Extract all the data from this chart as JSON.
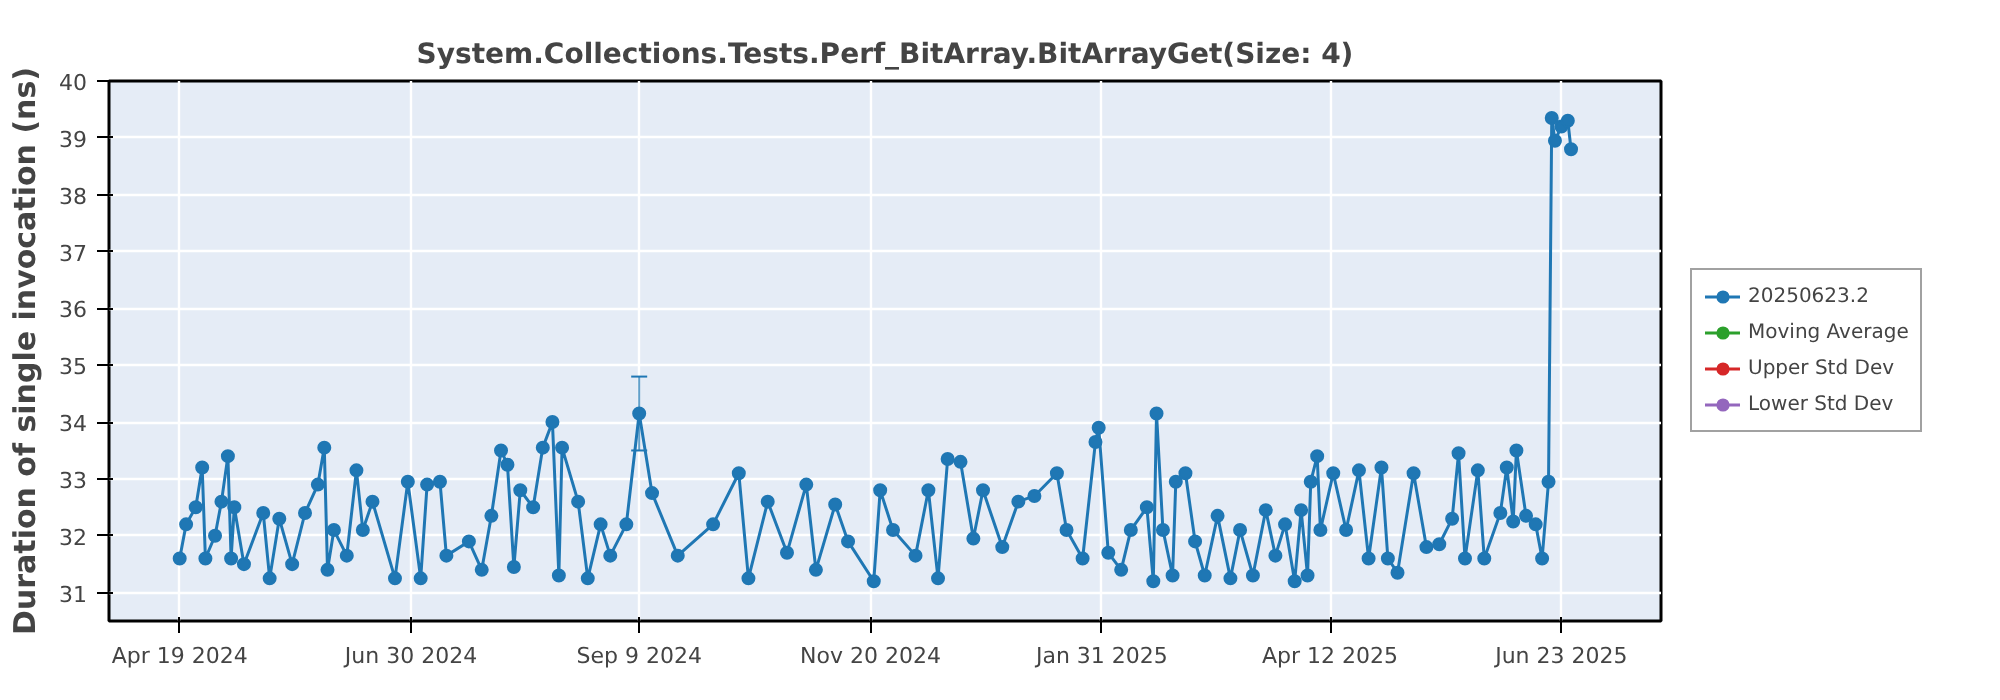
{
  "chart_data": {
    "type": "line",
    "title": "System.Collections.Tests.Perf_BitArray.BitArrayGet(Size: 4)",
    "ylabel": "Duration of single invocation (ns)",
    "xlim": [
      "2024-03-28",
      "2025-07-24"
    ],
    "ylim": [
      30.5,
      40
    ],
    "xticks": [
      {
        "value": "2024-04-19",
        "label": "Apr 19 2024"
      },
      {
        "value": "2024-06-30",
        "label": "Jun 30 2024"
      },
      {
        "value": "2024-09-09",
        "label": "Sep 9 2024"
      },
      {
        "value": "2024-11-20",
        "label": "Nov 20 2024"
      },
      {
        "value": "2025-01-31",
        "label": "Jan 31 2025"
      },
      {
        "value": "2025-04-12",
        "label": "Apr 12 2025"
      },
      {
        "value": "2025-06-23",
        "label": "Jun 23 2025"
      }
    ],
    "yticks": [
      31,
      32,
      33,
      34,
      35,
      36,
      37,
      38,
      39,
      40
    ],
    "grid": true,
    "legend": "right",
    "marker": "circle",
    "line_style": "solid",
    "series": [
      {
        "name": "20250623.2",
        "color": "#1f77b4",
        "x": [
          "2024-04-19",
          "2024-04-21",
          "2024-04-24",
          "2024-04-26",
          "2024-04-27",
          "2024-04-30",
          "2024-05-02",
          "2024-05-04",
          "2024-05-05",
          "2024-05-06",
          "2024-05-09",
          "2024-05-15",
          "2024-05-17",
          "2024-05-20",
          "2024-05-24",
          "2024-05-28",
          "2024-06-01",
          "2024-06-03",
          "2024-06-04",
          "2024-06-06",
          "2024-06-10",
          "2024-06-13",
          "2024-06-15",
          "2024-06-18",
          "2024-06-25",
          "2024-06-29",
          "2024-07-03",
          "2024-07-05",
          "2024-07-09",
          "2024-07-11",
          "2024-07-18",
          "2024-07-22",
          "2024-07-25",
          "2024-07-28",
          "2024-07-30",
          "2024-08-01",
          "2024-08-03",
          "2024-08-07",
          "2024-08-10",
          "2024-08-13",
          "2024-08-15",
          "2024-08-16",
          "2024-08-21",
          "2024-08-24",
          "2024-08-28",
          "2024-08-31",
          "2024-09-05",
          "2024-09-09",
          "2024-09-13",
          "2024-09-21",
          "2024-10-02",
          "2024-10-10",
          "2024-10-13",
          "2024-10-19",
          "2024-10-25",
          "2024-10-31",
          "2024-11-03",
          "2024-11-09",
          "2024-11-13",
          "2024-11-21",
          "2024-11-23",
          "2024-11-27",
          "2024-12-04",
          "2024-12-08",
          "2024-12-11",
          "2024-12-14",
          "2024-12-18",
          "2024-12-22",
          "2024-12-25",
          "2024-12-31",
          "2025-01-05",
          "2025-01-10",
          "2025-01-17",
          "2025-01-20",
          "2025-01-25",
          "2025-01-29",
          "2025-01-30",
          "2025-02-02",
          "2025-02-06",
          "2025-02-09",
          "2025-02-14",
          "2025-02-16",
          "2025-02-17",
          "2025-02-19",
          "2025-02-22",
          "2025-02-23",
          "2025-02-26",
          "2025-03-01",
          "2025-03-04",
          "2025-03-08",
          "2025-03-12",
          "2025-03-15",
          "2025-03-19",
          "2025-03-23",
          "2025-03-26",
          "2025-03-29",
          "2025-04-01",
          "2025-04-03",
          "2025-04-05",
          "2025-04-06",
          "2025-04-08",
          "2025-04-09",
          "2025-04-13",
          "2025-04-17",
          "2025-04-21",
          "2025-04-24",
          "2025-04-28",
          "2025-04-30",
          "2025-05-03",
          "2025-05-08",
          "2025-05-12",
          "2025-05-16",
          "2025-05-20",
          "2025-05-22",
          "2025-05-24",
          "2025-05-28",
          "2025-05-30",
          "2025-06-04",
          "2025-06-06",
          "2025-06-08",
          "2025-06-09",
          "2025-06-12",
          "2025-06-15",
          "2025-06-17",
          "2025-06-19",
          "2025-06-20",
          "2025-06-21",
          "2025-06-23",
          "2025-06-25",
          "2025-06-26"
        ],
        "values": [
          31.6,
          32.2,
          32.5,
          33.2,
          31.6,
          32.0,
          32.6,
          33.4,
          31.6,
          32.5,
          31.5,
          32.4,
          31.25,
          32.3,
          31.5,
          32.4,
          32.9,
          33.55,
          31.4,
          32.1,
          31.65,
          33.15,
          32.1,
          32.6,
          31.25,
          32.95,
          31.25,
          32.9,
          32.95,
          31.65,
          31.9,
          31.4,
          32.35,
          33.5,
          33.25,
          31.45,
          32.8,
          32.5,
          33.55,
          34.0,
          31.3,
          33.55,
          32.6,
          31.25,
          32.2,
          31.65,
          32.2,
          34.15,
          32.75,
          31.65,
          32.2,
          33.1,
          31.25,
          32.6,
          31.7,
          32.9,
          31.4,
          32.55,
          31.9,
          31.2,
          32.8,
          32.1,
          31.65,
          32.8,
          31.25,
          33.35,
          33.3,
          31.95,
          32.8,
          31.8,
          32.6,
          32.7,
          33.1,
          32.1,
          31.6,
          33.65,
          33.9,
          31.7,
          31.4,
          32.1,
          32.5,
          31.2,
          34.15,
          32.1,
          31.3,
          32.95,
          33.1,
          31.9,
          31.3,
          32.35,
          31.25,
          32.1,
          31.3,
          32.45,
          31.65,
          32.2,
          31.2,
          32.45,
          31.3,
          32.95,
          33.4,
          32.1,
          33.1,
          32.1,
          33.15,
          31.6,
          33.2,
          31.6,
          31.35,
          33.1,
          31.8,
          31.85,
          32.3,
          33.45,
          31.6,
          33.15,
          31.6,
          32.4,
          33.2,
          32.25,
          33.5,
          32.35,
          32.2,
          31.6,
          32.95,
          39.35,
          38.95,
          39.2,
          39.3,
          38.8
        ],
        "errors": [
          null,
          null,
          null,
          null,
          null,
          null,
          null,
          null,
          null,
          null,
          null,
          null,
          null,
          null,
          null,
          null,
          null,
          null,
          null,
          null,
          null,
          null,
          null,
          null,
          null,
          null,
          null,
          null,
          null,
          null,
          null,
          null,
          null,
          null,
          null,
          null,
          null,
          null,
          null,
          null,
          null,
          null,
          null,
          null,
          null,
          null,
          null,
          [
            33.5,
            34.8
          ],
          null,
          null,
          null,
          null,
          null,
          null,
          null,
          null,
          null,
          null,
          null,
          null,
          null,
          null,
          null,
          null,
          null,
          null,
          null,
          null,
          null,
          null,
          null,
          null,
          null,
          null,
          null,
          null,
          null,
          null,
          null,
          null,
          null,
          null,
          null,
          null,
          null,
          null,
          null,
          null,
          null,
          null,
          null,
          null,
          null,
          null,
          null,
          null,
          null,
          null,
          null,
          null,
          null,
          null,
          null,
          null,
          null,
          null,
          null,
          null,
          null,
          null,
          null,
          null,
          null,
          null,
          null,
          null,
          null,
          null,
          null,
          null,
          null,
          null,
          null,
          null,
          null,
          null,
          null,
          null,
          null,
          null
        ]
      },
      {
        "name": "Moving Average",
        "color": "#2ca02c"
      },
      {
        "name": "Upper Std Dev",
        "color": "#d62728"
      },
      {
        "name": "Lower Std Dev",
        "color": "#9467bd"
      }
    ]
  }
}
